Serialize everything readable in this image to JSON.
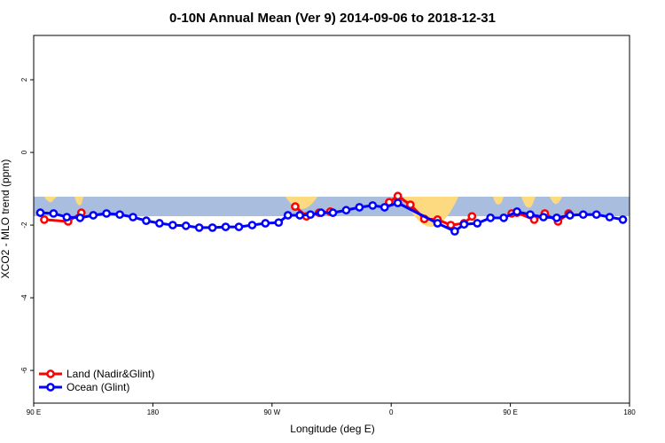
{
  "chart_data": {
    "type": "line",
    "title": "0-10N Annual Mean (Ver 9)   2014-09-06 to 2018-12-31",
    "xlabel": "Longitude (deg E)",
    "ylabel": "XCO2 - MLO trend (ppm)",
    "xlim": [
      90,
      540
    ],
    "ylim": [
      -6.9,
      3.22
    ],
    "xticks": [
      {
        "value": 90,
        "label": "90 E"
      },
      180,
      {
        "value": 270,
        "label": "90 W"
      },
      {
        "value": 360,
        "label": "0"
      },
      {
        "value": 450,
        "label": "90 E"
      },
      {
        "value": 540,
        "label": "180"
      }
    ],
    "yticks": [
      2,
      0,
      -2,
      -4,
      -6
    ],
    "legend": "lower left",
    "series": [
      {
        "name": "Land (Nadir&Glint)",
        "color": "#ff0000",
        "x": [
          98,
          116,
          126,
          null,
          287.5,
          296,
          305.5,
          314,
          null,
          358.5,
          365,
          374.5,
          385,
          395,
          405,
          415,
          421,
          null,
          451,
          455,
          468,
          476,
          486,
          494
        ],
        "values": [
          -1.85,
          -1.9,
          -1.66,
          null,
          -1.49,
          -1.76,
          -1.66,
          -1.63,
          null,
          -1.37,
          -1.2,
          -1.44,
          -1.83,
          -1.85,
          -2.0,
          -1.95,
          -1.76,
          null,
          -1.68,
          -1.66,
          -1.85,
          -1.68,
          -1.9,
          -1.68
        ]
      },
      {
        "name": "Ocean (Glint)",
        "color": "#0000ff",
        "x": [
          95,
          105,
          115,
          125,
          135,
          145,
          155,
          165,
          175,
          185,
          195,
          205,
          215,
          225,
          235,
          245,
          255,
          265,
          275,
          282,
          291,
          299,
          307,
          316,
          326,
          336,
          346,
          355,
          365,
          395,
          408,
          415,
          425,
          435,
          445,
          455,
          465,
          475,
          485,
          495,
          505,
          515,
          525,
          535
        ],
        "values": [
          -1.66,
          -1.68,
          -1.78,
          -1.8,
          -1.73,
          -1.68,
          -1.71,
          -1.78,
          -1.88,
          -1.95,
          -2.0,
          -2.02,
          -2.07,
          -2.07,
          -2.05,
          -2.05,
          -2.0,
          -1.95,
          -1.93,
          -1.73,
          -1.73,
          -1.71,
          -1.66,
          -1.66,
          -1.59,
          -1.51,
          -1.46,
          -1.51,
          -1.39,
          -1.95,
          -2.17,
          -1.98,
          -1.95,
          -1.8,
          -1.8,
          -1.63,
          -1.71,
          -1.78,
          -1.8,
          -1.73,
          -1.71,
          -1.71,
          -1.78,
          -1.85
        ]
      }
    ]
  }
}
